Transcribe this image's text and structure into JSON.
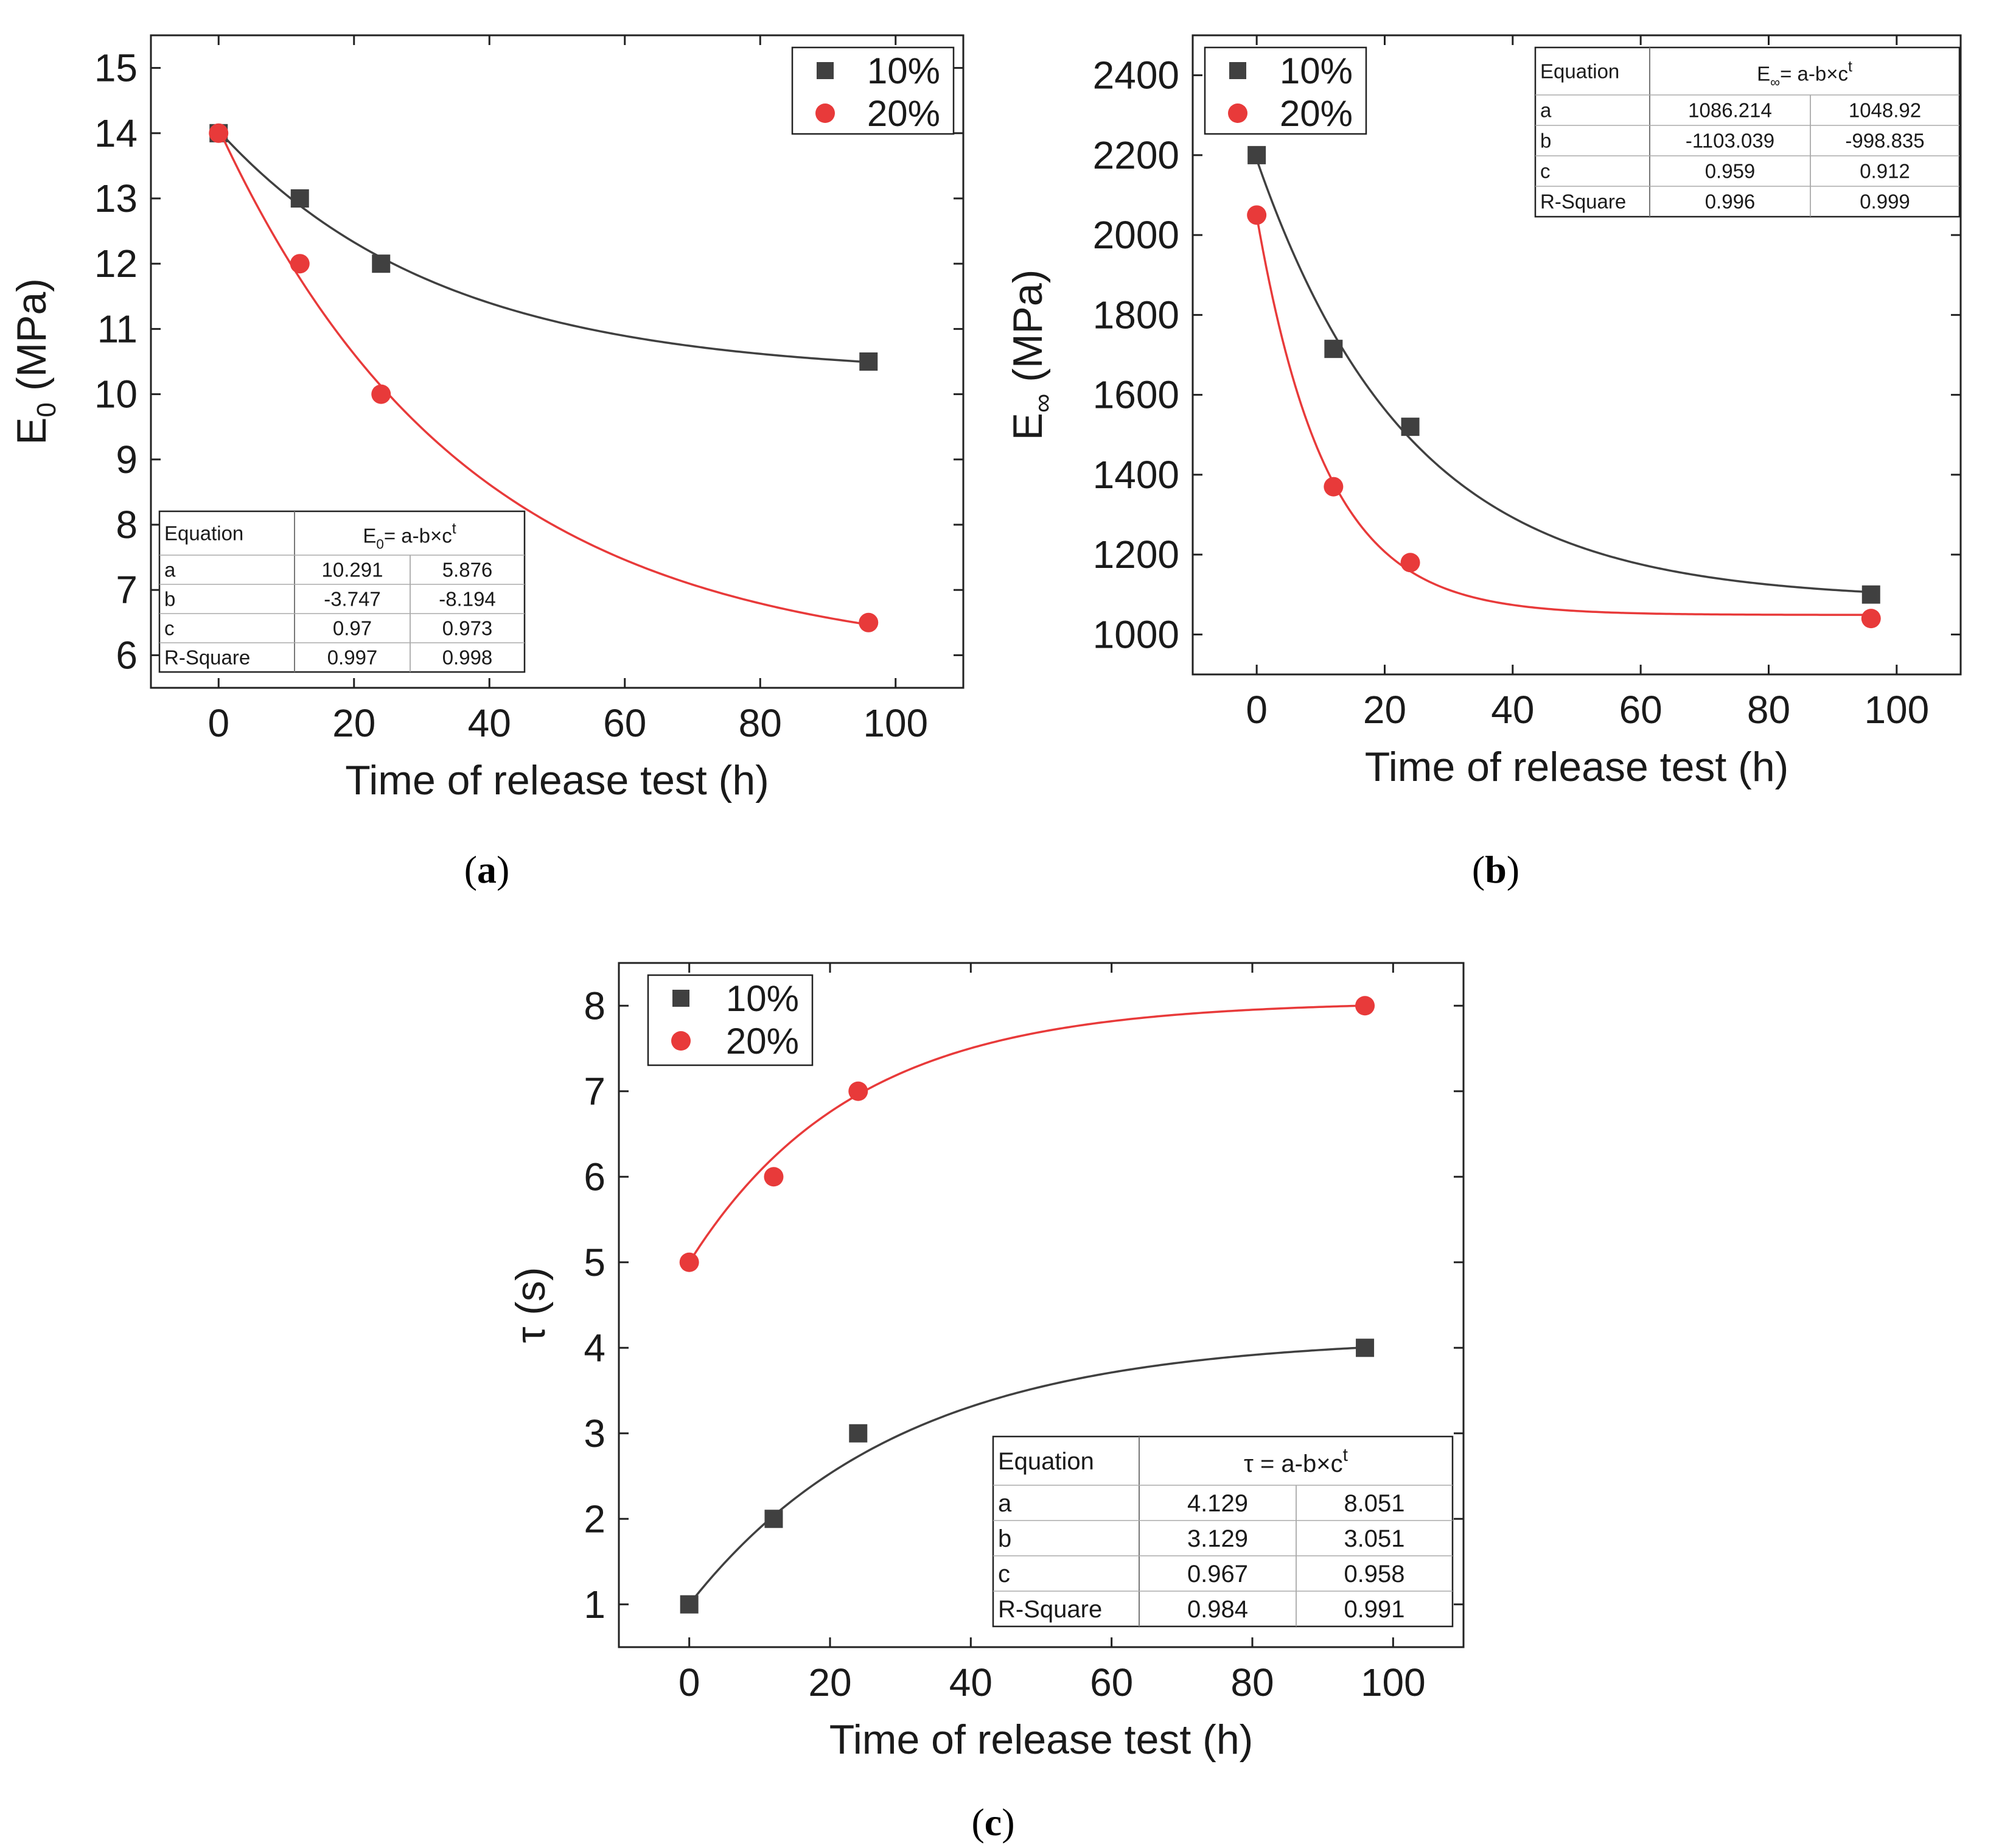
{
  "colors": {
    "series_10": "#404040",
    "series_20": "#e83a3a",
    "axis": "#222222",
    "grid_line": "#cccccc"
  },
  "chart_data": [
    {
      "id": "a",
      "type": "scatter",
      "panel_label": "a",
      "xlabel": "Time of release test (h)",
      "ylabel": {
        "base": "E",
        "sub": "0",
        "unit": " (MPa)"
      },
      "xlim": [
        -10,
        110
      ],
      "ylim": [
        5.5,
        15.5
      ],
      "xticks": [
        0,
        20,
        40,
        60,
        80,
        100
      ],
      "yticks": [
        6,
        7,
        8,
        9,
        10,
        11,
        12,
        13,
        14,
        15
      ],
      "x": [
        0,
        12,
        24,
        96
      ],
      "series": [
        {
          "name": "10%",
          "marker": "square",
          "color": "#404040",
          "values": [
            14,
            13,
            12,
            10.5
          ],
          "fit": {
            "a": 10.291,
            "b": -3.747,
            "c": 0.97
          }
        },
        {
          "name": "20%",
          "marker": "circle",
          "color": "#e83a3a",
          "values": [
            14,
            12,
            10,
            6.5
          ],
          "fit": {
            "a": 5.876,
            "b": -8.194,
            "c": 0.973
          }
        }
      ],
      "legend_position": "top-right",
      "table": {
        "position": "bottom-left",
        "header": "Equation",
        "equation": {
          "base": "E",
          "sub": "0",
          "rest": "= a-b×c",
          "sup": "t"
        },
        "rows": [
          {
            "label": "a",
            "v1": "10.291",
            "v2": "5.876"
          },
          {
            "label": "b",
            "v1": "-3.747",
            "v2": "-8.194"
          },
          {
            "label": "c",
            "v1": "0.97",
            "v2": "0.973"
          },
          {
            "label": "R-Square",
            "v1": "0.997",
            "v2": "0.998"
          }
        ]
      }
    },
    {
      "id": "b",
      "type": "scatter",
      "panel_label": "b",
      "xlabel": "Time of release test (h)",
      "ylabel": {
        "base": "E",
        "sub": "∞",
        "unit": " (MPa)"
      },
      "xlim": [
        -10,
        110
      ],
      "ylim": [
        900,
        2500
      ],
      "xticks": [
        0,
        20,
        40,
        60,
        80,
        100
      ],
      "yticks": [
        1000,
        1200,
        1400,
        1600,
        1800,
        2000,
        2200,
        2400
      ],
      "x": [
        0,
        12,
        24,
        96
      ],
      "series": [
        {
          "name": "10%",
          "marker": "square",
          "color": "#404040",
          "values": [
            2200,
            1715,
            1520,
            1100
          ],
          "fit": {
            "a": 1086.214,
            "b": -1103.039,
            "c": 0.959
          }
        },
        {
          "name": "20%",
          "marker": "circle",
          "color": "#e83a3a",
          "values": [
            2050,
            1370,
            1180,
            1040
          ],
          "fit": {
            "a": 1048.92,
            "b": -998.835,
            "c": 0.912
          }
        }
      ],
      "legend_position": "top-left",
      "table": {
        "position": "top-right",
        "header": "Equation",
        "equation": {
          "base": "E",
          "sub": "∞",
          "rest": "= a-b×c",
          "sup": "t"
        },
        "rows": [
          {
            "label": "a",
            "v1": "1086.214",
            "v2": "1048.92"
          },
          {
            "label": "b",
            "v1": "-1103.039",
            "v2": "-998.835"
          },
          {
            "label": "c",
            "v1": "0.959",
            "v2": "0.912"
          },
          {
            "label": "R-Square",
            "v1": "0.996",
            "v2": "0.999"
          }
        ]
      }
    },
    {
      "id": "c",
      "type": "scatter",
      "panel_label": "c",
      "xlabel": "Time of release test (h)",
      "ylabel": {
        "base": "τ",
        "sub": "",
        "unit": " (s)"
      },
      "xlim": [
        -10,
        110
      ],
      "ylim": [
        0.5,
        8.5
      ],
      "xticks": [
        0,
        20,
        40,
        60,
        80,
        100
      ],
      "yticks": [
        1,
        2,
        3,
        4,
        5,
        6,
        7,
        8
      ],
      "x": [
        0,
        12,
        24,
        96
      ],
      "series": [
        {
          "name": "10%",
          "marker": "square",
          "color": "#404040",
          "values": [
            1,
            2,
            3,
            4
          ],
          "fit": {
            "a": 4.129,
            "b": 3.129,
            "c": 0.967
          }
        },
        {
          "name": "20%",
          "marker": "circle",
          "color": "#e83a3a",
          "values": [
            5,
            6,
            7,
            8
          ],
          "fit": {
            "a": 8.051,
            "b": 3.051,
            "c": 0.958
          }
        }
      ],
      "legend_position": "top-left",
      "table": {
        "position": "bottom-right",
        "header": "Equation",
        "equation": {
          "base": "τ",
          "sub": "",
          "rest": " = a-b×c",
          "sup": "t"
        },
        "rows": [
          {
            "label": "a",
            "v1": "4.129",
            "v2": "8.051"
          },
          {
            "label": "b",
            "v1": "3.129",
            "v2": "3.051"
          },
          {
            "label": "c",
            "v1": "0.967",
            "v2": "0.958"
          },
          {
            "label": "R-Square",
            "v1": "0.984",
            "v2": "0.991"
          }
        ]
      }
    }
  ]
}
